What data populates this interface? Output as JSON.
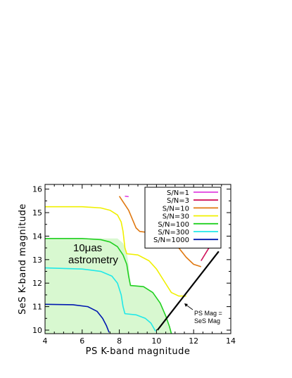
{
  "chart_data": {
    "type": "line",
    "xlabel": "PS K-band magnitude",
    "ylabel": "SeS K-band magnitude",
    "xlim": [
      4,
      14
    ],
    "ylim": [
      9.85,
      16.2
    ],
    "x_ticks": [
      4,
      6,
      8,
      10,
      12,
      14
    ],
    "y_ticks": [
      10,
      11,
      12,
      13,
      14,
      15,
      16
    ],
    "grid": false,
    "legend_position": "top-right",
    "annotations": {
      "region_label_line1": "10μas",
      "region_label_line2": "astrometry",
      "diagonal_label_line1": "PS Mag =",
      "diagonal_label_line2": "SeS Mag"
    },
    "shaded_region": {
      "label": "10μas astrometry",
      "color": "#d8f8d0",
      "boundary": [
        [
          4,
          13.9
        ],
        [
          7.9,
          13.9
        ],
        [
          8.2,
          13.7
        ],
        [
          8.4,
          13.3
        ],
        [
          8.5,
          12.8
        ],
        [
          8.6,
          11.9
        ],
        [
          9.3,
          11.85
        ],
        [
          9.8,
          11.6
        ],
        [
          10.3,
          11.0
        ],
        [
          10.6,
          10.4
        ],
        [
          10.85,
          9.85
        ],
        [
          4,
          9.85
        ]
      ]
    },
    "diagonal_line": {
      "label": "PS Mag = SeS Mag",
      "color": "#000000",
      "points": [
        [
          10.05,
          10.0
        ],
        [
          13.35,
          13.35
        ]
      ]
    },
    "series": [
      {
        "name": "S/N=1",
        "color": "#e040e0",
        "points": [
          [
            8.3,
            15.7
          ],
          [
            8.5,
            15.68
          ]
        ]
      },
      {
        "name": "S/N=3",
        "color": "#d0105a",
        "points": [
          [
            12.4,
            12.95
          ],
          [
            12.9,
            13.6
          ]
        ]
      },
      {
        "name": "S/N=10",
        "color": "#e07810",
        "points": [
          [
            8.0,
            15.7
          ],
          [
            8.5,
            15.1
          ],
          [
            8.9,
            14.35
          ],
          [
            9.1,
            14.2
          ],
          [
            9.6,
            14.15
          ],
          [
            10.2,
            14.1
          ],
          [
            10.5,
            13.95
          ],
          [
            11.0,
            13.8
          ],
          [
            11.2,
            13.5
          ],
          [
            11.6,
            13.1
          ],
          [
            12.0,
            12.8
          ],
          [
            12.4,
            12.7
          ]
        ]
      },
      {
        "name": "S/N=30",
        "color": "#f0f000",
        "points": [
          [
            4.0,
            15.25
          ],
          [
            6.0,
            15.25
          ],
          [
            7.0,
            15.2
          ],
          [
            7.5,
            15.1
          ],
          [
            7.9,
            14.9
          ],
          [
            8.1,
            14.6
          ],
          [
            8.2,
            14.2
          ],
          [
            8.3,
            13.5
          ],
          [
            8.4,
            13.25
          ],
          [
            9.0,
            13.2
          ],
          [
            9.6,
            12.95
          ],
          [
            10.0,
            12.6
          ],
          [
            10.4,
            12.1
          ],
          [
            10.8,
            11.6
          ],
          [
            11.2,
            11.45
          ],
          [
            11.6,
            11.45
          ]
        ]
      },
      {
        "name": "S/N=100",
        "color": "#20d020",
        "points": [
          [
            4.0,
            13.9
          ],
          [
            6.0,
            13.9
          ],
          [
            7.0,
            13.85
          ],
          [
            7.5,
            13.75
          ],
          [
            7.9,
            13.55
          ],
          [
            8.2,
            13.2
          ],
          [
            8.4,
            12.8
          ],
          [
            8.5,
            12.3
          ],
          [
            8.6,
            11.9
          ],
          [
            9.3,
            11.85
          ],
          [
            9.8,
            11.6
          ],
          [
            10.2,
            11.15
          ],
          [
            10.5,
            10.6
          ],
          [
            10.7,
            10.15
          ],
          [
            10.8,
            9.85
          ]
        ]
      },
      {
        "name": "S/N=300",
        "color": "#20e8e8",
        "points": [
          [
            4.0,
            12.65
          ],
          [
            6.0,
            12.6
          ],
          [
            7.0,
            12.5
          ],
          [
            7.6,
            12.3
          ],
          [
            7.9,
            12.0
          ],
          [
            8.1,
            11.5
          ],
          [
            8.2,
            11.0
          ],
          [
            8.3,
            10.7
          ],
          [
            8.9,
            10.65
          ],
          [
            9.4,
            10.5
          ],
          [
            9.7,
            10.3
          ],
          [
            9.95,
            9.95
          ]
        ]
      },
      {
        "name": "S/N=1000",
        "color": "#0018b0",
        "points": [
          [
            4.0,
            11.1
          ],
          [
            5.5,
            11.08
          ],
          [
            6.3,
            11.0
          ],
          [
            6.8,
            10.8
          ],
          [
            7.1,
            10.5
          ],
          [
            7.3,
            10.2
          ],
          [
            7.45,
            9.9
          ]
        ]
      }
    ]
  }
}
